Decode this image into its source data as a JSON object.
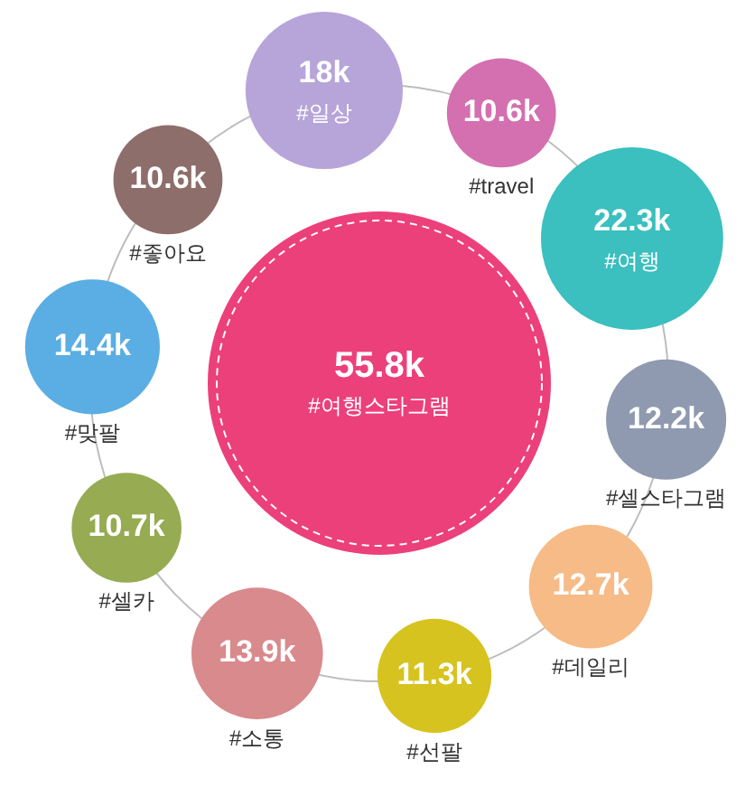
{
  "chart_data": {
    "type": "other",
    "categories": [
      "#여행스타그램",
      "#일상",
      "#travel",
      "#여행",
      "#셀스타그램",
      "#데일리",
      "#선팔",
      "#소통",
      "#셀카",
      "#맞팔",
      "#좋아요"
    ],
    "values": [
      55.8,
      18,
      10.6,
      22.3,
      12.2,
      12.7,
      11.3,
      13.9,
      10.7,
      14.4,
      10.6
    ],
    "value_labels": [
      "55.8k",
      "18k",
      "10.6k",
      "22.3k",
      "12.2k",
      "12.7k",
      "11.3k",
      "13.9k",
      "10.7k",
      "14.4k",
      "10.6k"
    ],
    "colors": [
      "#ec407a",
      "#b7a4d9",
      "#d46fb0",
      "#3bbfbf",
      "#8f9ab0",
      "#f6bb87",
      "#d6c31f",
      "#d98a8c",
      "#96ab52",
      "#5aaee3",
      "#8d6e6a"
    ]
  }
}
